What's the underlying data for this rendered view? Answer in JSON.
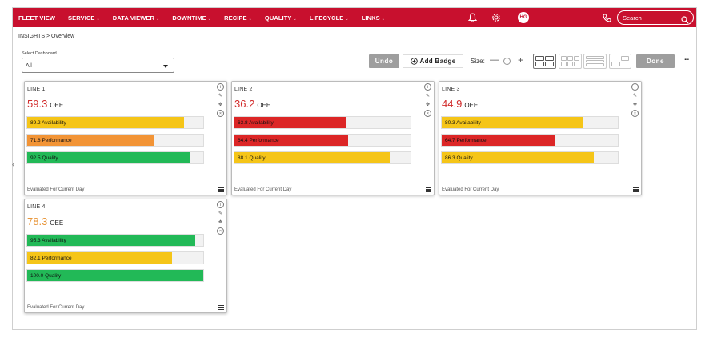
{
  "nav": {
    "items": [
      "FLEET VIEW",
      "SERVICE",
      "DATA VIEWER",
      "DOWNTIME",
      "RECIPE",
      "QUALITY",
      "LIFECYCLE",
      "LINKS"
    ],
    "avatar": "HG",
    "search_placeholder": "Search",
    "icons": [
      "bell-icon",
      "gear-icon",
      "phone-icon",
      "search-icon"
    ]
  },
  "breadcrumb": "INSIGHTS > Overview",
  "dashboard": {
    "label": "Select Dashboard",
    "value": "All"
  },
  "toolbar": {
    "undo": "Undo",
    "add_badge": "Add Badge",
    "size_label": "Size:",
    "done": "Done",
    "more": "..."
  },
  "cards": [
    {
      "title": "LINE 1",
      "oee": "59.3",
      "oee_label": "OEE",
      "oee_color": "#d12b2b",
      "metrics": [
        {
          "label": "89.2 Availability",
          "value": 89.2,
          "color": "#f5c518"
        },
        {
          "label": "71.8 Performance",
          "value": 71.8,
          "color": "#f29436"
        },
        {
          "label": "92.5 Quality",
          "value": 92.5,
          "color": "#22b957"
        }
      ],
      "footer": "Evaluated For Current Day"
    },
    {
      "title": "LINE 2",
      "oee": "36.2",
      "oee_label": "OEE",
      "oee_color": "#d12b2b",
      "metrics": [
        {
          "label": "63.8 Availability",
          "value": 63.8,
          "color": "#dc2626"
        },
        {
          "label": "64.4 Performance",
          "value": 64.4,
          "color": "#dc2626"
        },
        {
          "label": "88.1 Quality",
          "value": 88.1,
          "color": "#f5c518"
        }
      ],
      "footer": "Evaluated For Current Day"
    },
    {
      "title": "LINE 3",
      "oee": "44.9",
      "oee_label": "OEE",
      "oee_color": "#d12b2b",
      "metrics": [
        {
          "label": "80.3 Availability",
          "value": 80.3,
          "color": "#f5c518"
        },
        {
          "label": "64.7 Performance",
          "value": 64.7,
          "color": "#dc2626"
        },
        {
          "label": "86.3 Quality",
          "value": 86.3,
          "color": "#f5c518"
        }
      ],
      "footer": "Evaluated For Current Day"
    },
    {
      "title": "LINE 4",
      "oee": "78.3",
      "oee_label": "OEE",
      "oee_color": "#e8963a",
      "metrics": [
        {
          "label": "95.3 Availability",
          "value": 95.3,
          "color": "#22b957"
        },
        {
          "label": "82.1 Performance",
          "value": 82.1,
          "color": "#f5c518"
        },
        {
          "label": "100.0 Quality",
          "value": 100.0,
          "color": "#22b957"
        }
      ],
      "footer": "Evaluated For Current Day"
    }
  ]
}
